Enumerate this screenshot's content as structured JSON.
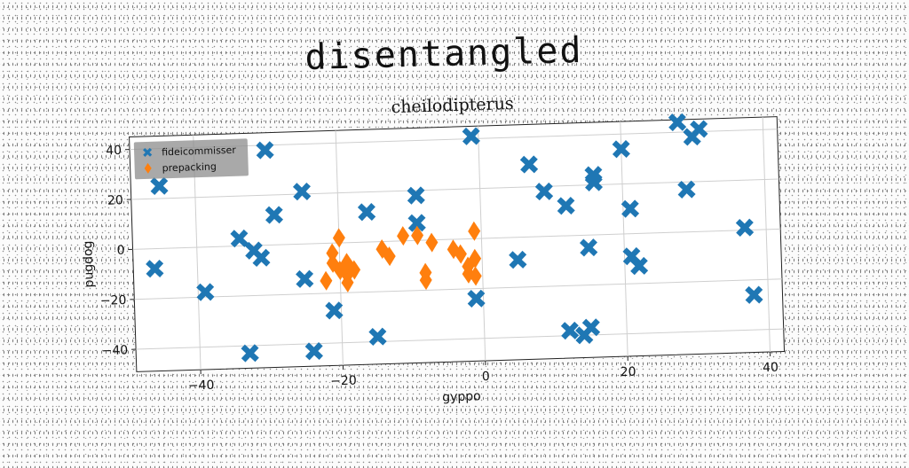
{
  "title": "disentangled",
  "chart_data": {
    "type": "scatter",
    "title": "cheilodipterus",
    "xlabel": "gyppo",
    "ylabel": "pugdog",
    "xlim": [
      -49,
      42
    ],
    "ylim": [
      -49,
      45
    ],
    "xticks": [
      "−40",
      "−20",
      "0",
      "20",
      "40"
    ],
    "xtick_values": [
      -40,
      -20,
      0,
      20,
      40
    ],
    "yticks": [
      "40",
      "20",
      "0",
      "−20",
      "−40"
    ],
    "ytick_values": [
      40,
      20,
      0,
      -20,
      -40
    ],
    "grid": true,
    "legend_position": "top-left",
    "series": [
      {
        "name": "fideicommisser",
        "color": "#1f77b4",
        "marker": "X",
        "points": [
          [
            -45,
            25
          ],
          [
            -46,
            -8
          ],
          [
            -39,
            -18
          ],
          [
            -34,
            3
          ],
          [
            -32,
            -2
          ],
          [
            -31,
            -5
          ],
          [
            -30,
            38
          ],
          [
            -29,
            12
          ],
          [
            -33,
            -43
          ],
          [
            -25,
            21
          ],
          [
            -25,
            -14
          ],
          [
            -24,
            -43
          ],
          [
            -21,
            -27
          ],
          [
            -16,
            12
          ],
          [
            -15,
            -38
          ],
          [
            -9,
            18
          ],
          [
            -9,
            7
          ],
          [
            -1,
            41
          ],
          [
            -1,
            -24
          ],
          [
            5,
            -9
          ],
          [
            7,
            29
          ],
          [
            9,
            18
          ],
          [
            12,
            12
          ],
          [
            12,
            -38
          ],
          [
            14,
            -40
          ],
          [
            15,
            -37
          ],
          [
            15,
            -5
          ],
          [
            16,
            24
          ],
          [
            16,
            21
          ],
          [
            20,
            34
          ],
          [
            21,
            10
          ],
          [
            21,
            -9
          ],
          [
            22,
            -13
          ],
          [
            28,
            44
          ],
          [
            29,
            17
          ],
          [
            30,
            38
          ],
          [
            31,
            41
          ],
          [
            37,
            1
          ],
          [
            38,
            -26
          ]
        ]
      },
      {
        "name": "prepacking",
        "color": "#ff7f0e",
        "marker": "D",
        "points": [
          [
            -22,
            -15
          ],
          [
            -21,
            -4
          ],
          [
            -20,
            2
          ],
          [
            -21,
            -8
          ],
          [
            -20,
            -11
          ],
          [
            -19,
            -8
          ],
          [
            -19,
            -13
          ],
          [
            -19,
            -16
          ],
          [
            -18,
            -11
          ],
          [
            -14,
            -3
          ],
          [
            -13,
            -6
          ],
          [
            -11,
            2
          ],
          [
            -9,
            2
          ],
          [
            -8,
            -16
          ],
          [
            -8,
            -13
          ],
          [
            -7,
            -1
          ],
          [
            -4,
            -4
          ],
          [
            -3,
            -6
          ],
          [
            -2,
            -11
          ],
          [
            -2,
            -14
          ],
          [
            -1,
            3
          ],
          [
            -1,
            -8
          ],
          [
            -1,
            -15
          ]
        ]
      }
    ]
  }
}
